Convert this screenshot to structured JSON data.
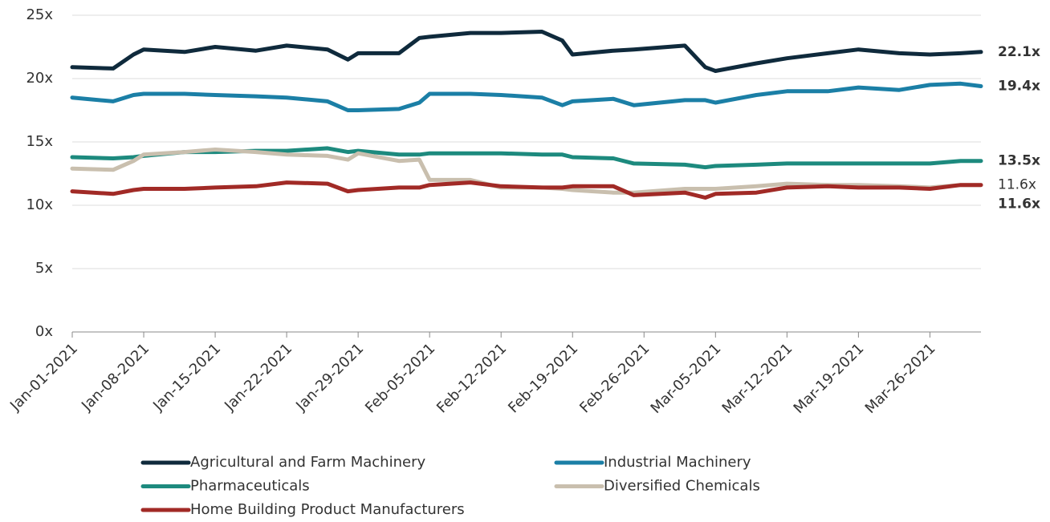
{
  "chart_data": {
    "type": "line",
    "x": [
      "2021-01-01",
      "2021-01-05",
      "2021-01-07",
      "2021-01-08",
      "2021-01-12",
      "2021-01-15",
      "2021-01-19",
      "2021-01-22",
      "2021-01-26",
      "2021-01-28",
      "2021-01-29",
      "2021-02-02",
      "2021-02-04",
      "2021-02-05",
      "2021-02-09",
      "2021-02-12",
      "2021-02-16",
      "2021-02-18",
      "2021-02-19",
      "2021-02-23",
      "2021-02-25",
      "2021-03-02",
      "2021-03-04",
      "2021-03-05",
      "2021-03-09",
      "2021-03-12",
      "2021-03-16",
      "2021-03-19",
      "2021-03-23",
      "2021-03-26",
      "2021-03-29",
      "2021-03-31"
    ],
    "xlim": [
      "2021-01-01",
      "2021-03-31"
    ],
    "xticks": [
      {
        "value": "2021-01-01",
        "label": "Jan-01-2021"
      },
      {
        "value": "2021-01-08",
        "label": "Jan-08-2021"
      },
      {
        "value": "2021-01-15",
        "label": "Jan-15-2021"
      },
      {
        "value": "2021-01-22",
        "label": "Jan-22-2021"
      },
      {
        "value": "2021-01-29",
        "label": "Jan-29-2021"
      },
      {
        "value": "2021-02-05",
        "label": "Feb-05-2021"
      },
      {
        "value": "2021-02-12",
        "label": "Feb-12-2021"
      },
      {
        "value": "2021-02-19",
        "label": "Feb-19-2021"
      },
      {
        "value": "2021-02-26",
        "label": "Feb-26-2021"
      },
      {
        "value": "2021-03-05",
        "label": "Mar-05-2021"
      },
      {
        "value": "2021-03-12",
        "label": "Mar-12-2021"
      },
      {
        "value": "2021-03-19",
        "label": "Mar-19-2021"
      },
      {
        "value": "2021-03-26",
        "label": "Mar-26-2021"
      }
    ],
    "ylim": [
      0,
      25
    ],
    "yticks": [
      {
        "value": 0,
        "label": "0x"
      },
      {
        "value": 5,
        "label": "5x"
      },
      {
        "value": 10,
        "label": "10x"
      },
      {
        "value": 15,
        "label": "15x"
      },
      {
        "value": 20,
        "label": "20x"
      },
      {
        "value": 25,
        "label": "25x"
      }
    ],
    "grid": true,
    "legend": "bottom",
    "series": [
      {
        "name": "Agricultural and Farm Machinery",
        "color": "#0f2a3c",
        "values": [
          20.9,
          20.8,
          21.9,
          22.3,
          22.1,
          22.5,
          22.2,
          22.6,
          22.3,
          21.5,
          22.0,
          22.0,
          23.2,
          23.3,
          23.6,
          23.6,
          23.7,
          23.0,
          21.9,
          22.2,
          22.3,
          22.6,
          20.9,
          20.6,
          21.2,
          21.6,
          22.0,
          22.3,
          22.0,
          21.9,
          22.0,
          22.1
        ],
        "value_labels": [
          null,
          null,
          null,
          null,
          null,
          null,
          null,
          null,
          null,
          null,
          null,
          null,
          null,
          null,
          null,
          null,
          null,
          null,
          null,
          null,
          null,
          null,
          null,
          null,
          null,
          null,
          null,
          null,
          null,
          null,
          null,
          "22.1x"
        ]
      },
      {
        "name": "Industrial Machinery",
        "color": "#1b7fa6",
        "values": [
          18.5,
          18.2,
          18.7,
          18.8,
          18.8,
          18.7,
          18.6,
          18.5,
          18.2,
          17.5,
          17.5,
          17.6,
          18.1,
          18.8,
          18.8,
          18.7,
          18.5,
          17.9,
          18.2,
          18.4,
          17.9,
          18.3,
          18.3,
          18.1,
          18.7,
          19.0,
          19.0,
          19.3,
          19.1,
          19.5,
          19.6,
          19.4
        ],
        "value_labels": [
          null,
          null,
          null,
          null,
          null,
          null,
          null,
          null,
          null,
          null,
          null,
          null,
          null,
          null,
          null,
          null,
          null,
          null,
          null,
          null,
          null,
          null,
          null,
          null,
          null,
          null,
          null,
          null,
          null,
          null,
          null,
          "19.4x"
        ]
      },
      {
        "name": "Pharmaceuticals",
        "color": "#1d8a7e",
        "values": [
          13.8,
          13.7,
          13.8,
          13.9,
          14.2,
          14.2,
          14.3,
          14.3,
          14.5,
          14.2,
          14.3,
          14.0,
          14.0,
          14.1,
          14.1,
          14.1,
          14.0,
          14.0,
          13.8,
          13.7,
          13.3,
          13.2,
          13.0,
          13.1,
          13.2,
          13.3,
          13.3,
          13.3,
          13.3,
          13.3,
          13.5,
          13.5
        ],
        "value_labels": [
          null,
          null,
          null,
          null,
          null,
          null,
          null,
          null,
          null,
          null,
          null,
          null,
          null,
          null,
          null,
          null,
          null,
          null,
          null,
          null,
          null,
          null,
          null,
          null,
          null,
          null,
          null,
          null,
          null,
          null,
          null,
          "13.5x"
        ]
      },
      {
        "name": "Diversified Chemicals",
        "color": "#c9bfae",
        "values": [
          12.9,
          12.8,
          13.5,
          14.0,
          14.2,
          14.4,
          14.2,
          14.0,
          13.9,
          13.6,
          14.1,
          13.5,
          13.6,
          12.0,
          12.0,
          11.4,
          11.4,
          11.3,
          11.2,
          11.0,
          11.0,
          11.3,
          11.3,
          11.3,
          11.5,
          11.7,
          11.6,
          11.6,
          11.5,
          11.4,
          11.6,
          11.6
        ],
        "value_labels": [
          null,
          null,
          null,
          null,
          null,
          null,
          null,
          null,
          null,
          null,
          null,
          null,
          null,
          null,
          null,
          null,
          null,
          null,
          null,
          null,
          null,
          null,
          null,
          null,
          null,
          null,
          null,
          null,
          null,
          null,
          null,
          "11.6x"
        ]
      },
      {
        "name": "Home Building Product Manufacturers",
        "color": "#a12a26",
        "values": [
          11.1,
          10.9,
          11.2,
          11.3,
          11.3,
          11.4,
          11.5,
          11.8,
          11.7,
          11.1,
          11.2,
          11.4,
          11.4,
          11.6,
          11.8,
          11.5,
          11.4,
          11.4,
          11.5,
          11.5,
          10.8,
          11.0,
          10.6,
          10.9,
          11.0,
          11.4,
          11.5,
          11.4,
          11.4,
          11.3,
          11.6,
          11.6
        ],
        "value_labels": [
          null,
          null,
          null,
          null,
          null,
          null,
          null,
          null,
          null,
          null,
          null,
          null,
          null,
          null,
          null,
          null,
          null,
          null,
          null,
          null,
          null,
          null,
          null,
          null,
          null,
          null,
          null,
          null,
          null,
          null,
          null,
          "11.6x"
        ]
      }
    ]
  }
}
